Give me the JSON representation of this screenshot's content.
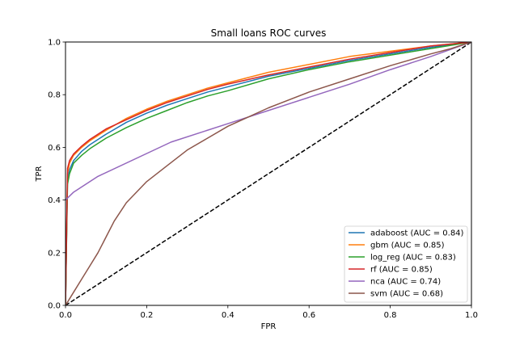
{
  "chart_data": {
    "type": "line",
    "title": "Small loans ROC curves",
    "xlabel": "FPR",
    "ylabel": "TPR",
    "xlim": [
      0.0,
      1.0
    ],
    "ylim": [
      0.0,
      1.0
    ],
    "xticks": [
      "0.0",
      "0.2",
      "0.4",
      "0.6",
      "0.8",
      "1.0"
    ],
    "yticks": [
      "0.0",
      "0.2",
      "0.4",
      "0.6",
      "0.8",
      "1.0"
    ],
    "grid": false,
    "legend_position": "bottom-right",
    "reference_line": {
      "x": [
        0,
        1
      ],
      "y": [
        0,
        1
      ],
      "color": "#000000",
      "style": "dashed"
    },
    "series": [
      {
        "name": "adaboost (AUC = 0.84)",
        "color": "#1f77b4",
        "x": [
          0,
          0.005,
          0.01,
          0.02,
          0.04,
          0.06,
          0.08,
          0.1,
          0.15,
          0.2,
          0.25,
          0.3,
          0.35,
          0.4,
          0.5,
          0.6,
          0.7,
          0.8,
          0.9,
          1.0
        ],
        "y": [
          0,
          0.48,
          0.515,
          0.55,
          0.585,
          0.61,
          0.63,
          0.65,
          0.695,
          0.73,
          0.76,
          0.785,
          0.81,
          0.83,
          0.87,
          0.9,
          0.93,
          0.955,
          0.98,
          1.0
        ]
      },
      {
        "name": "gbm (AUC = 0.85)",
        "color": "#ff7f0e",
        "x": [
          0,
          0.005,
          0.01,
          0.02,
          0.04,
          0.06,
          0.08,
          0.1,
          0.15,
          0.2,
          0.25,
          0.3,
          0.35,
          0.4,
          0.5,
          0.6,
          0.7,
          0.8,
          0.9,
          1.0
        ],
        "y": [
          0,
          0.5,
          0.54,
          0.57,
          0.6,
          0.625,
          0.645,
          0.665,
          0.71,
          0.745,
          0.775,
          0.8,
          0.825,
          0.845,
          0.885,
          0.915,
          0.945,
          0.965,
          0.985,
          1.0
        ]
      },
      {
        "name": "log_reg (AUC = 0.83)",
        "color": "#2ca02c",
        "x": [
          0,
          0.005,
          0.01,
          0.02,
          0.04,
          0.06,
          0.08,
          0.1,
          0.15,
          0.2,
          0.25,
          0.3,
          0.35,
          0.4,
          0.5,
          0.6,
          0.7,
          0.8,
          0.9,
          1.0
        ],
        "y": [
          0,
          0.46,
          0.5,
          0.54,
          0.57,
          0.595,
          0.615,
          0.635,
          0.675,
          0.71,
          0.74,
          0.77,
          0.795,
          0.815,
          0.86,
          0.895,
          0.925,
          0.95,
          0.975,
          1.0
        ]
      },
      {
        "name": "rf (AUC = 0.85)",
        "color": "#d62728",
        "x": [
          0,
          0.005,
          0.01,
          0.02,
          0.04,
          0.06,
          0.08,
          0.1,
          0.15,
          0.2,
          0.25,
          0.3,
          0.35,
          0.4,
          0.5,
          0.6,
          0.7,
          0.8,
          0.9,
          1.0
        ],
        "y": [
          0,
          0.52,
          0.55,
          0.575,
          0.605,
          0.63,
          0.65,
          0.67,
          0.705,
          0.74,
          0.77,
          0.795,
          0.82,
          0.84,
          0.875,
          0.905,
          0.935,
          0.96,
          0.985,
          1.0
        ]
      },
      {
        "name": "nca (AUC = 0.74)",
        "color": "#9467bd",
        "x": [
          0,
          0.02,
          0.08,
          0.26,
          0.4,
          0.5,
          0.6,
          0.7,
          0.8,
          0.9,
          1.0
        ],
        "y": [
          0.4,
          0.43,
          0.49,
          0.62,
          0.69,
          0.74,
          0.79,
          0.84,
          0.895,
          0.945,
          1.0
        ]
      },
      {
        "name": "svm (AUC = 0.68)",
        "color": "#8c564b",
        "x": [
          0,
          0.02,
          0.04,
          0.06,
          0.08,
          0.1,
          0.12,
          0.15,
          0.2,
          0.25,
          0.3,
          0.35,
          0.4,
          0.45,
          0.5,
          0.6,
          0.7,
          0.8,
          0.9,
          0.95,
          1.0
        ],
        "y": [
          0,
          0.05,
          0.1,
          0.15,
          0.2,
          0.26,
          0.32,
          0.39,
          0.47,
          0.53,
          0.59,
          0.635,
          0.68,
          0.715,
          0.75,
          0.81,
          0.86,
          0.91,
          0.955,
          0.975,
          1.0
        ]
      }
    ]
  }
}
